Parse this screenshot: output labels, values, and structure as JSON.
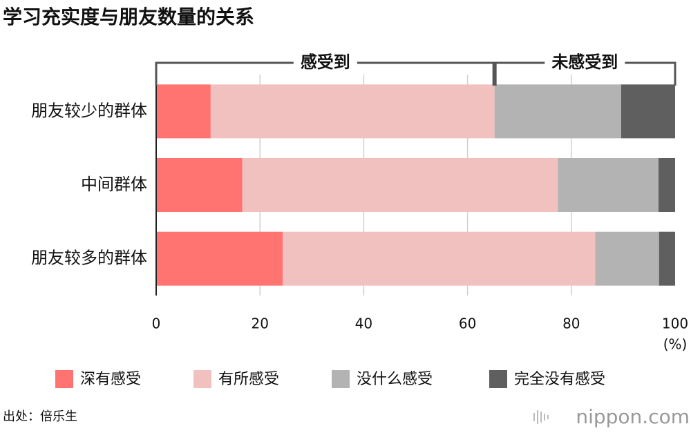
{
  "chart_data": {
    "type": "stacked-barh",
    "title": "学习充实度与朋友数量的关系",
    "categories": [
      "朋友较少的群体",
      "中间群体",
      "朋友较多的群体"
    ],
    "series": [
      {
        "name": "深有感受",
        "color": "#ff7370",
        "values": [
          10.5,
          16.6,
          24.4
        ]
      },
      {
        "name": "有所感受",
        "color": "#f1c1bf",
        "values": [
          54.7,
          60.8,
          60.2
        ]
      },
      {
        "name": "没什么感受",
        "color": "#b3b3b3",
        "values": [
          24.4,
          19.4,
          12.3
        ]
      },
      {
        "name": "完全没有感受",
        "color": "#5f5f5f",
        "values": [
          10.4,
          3.2,
          3.1
        ]
      }
    ],
    "xlim": [
      0,
      100
    ],
    "xticks": [
      0,
      20,
      40,
      60,
      80,
      100
    ],
    "x_unit": "(%)",
    "grid": true,
    "legend": "bottom",
    "group_labels": [
      "感受到",
      "未感受到"
    ]
  },
  "source": "出处：倍乐生",
  "logo": "nippon.com"
}
